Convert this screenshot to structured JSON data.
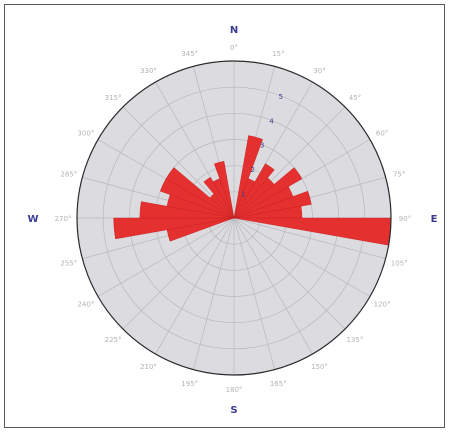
{
  "chart_data": {
    "type": "rose",
    "title": "",
    "cardinals": {
      "N": "N",
      "E": "E",
      "S": "S",
      "W": "W"
    },
    "angle_labels": [
      "0°",
      "15°",
      "30°",
      "45°",
      "60°",
      "75°",
      "90°",
      "105°",
      "120°",
      "135°",
      "150°",
      "165°",
      "180°",
      "195°",
      "210°",
      "225°",
      "240°",
      "255°",
      "270°",
      "285°",
      "300°",
      "315°",
      "330°",
      "345°"
    ],
    "radial_ticks": [
      "1",
      "2",
      "3",
      "4",
      "5"
    ],
    "radial_max": 6,
    "series": [
      {
        "color": "#e53030",
        "directions": [
          15,
          25,
          35,
          45,
          55,
          65,
          75,
          85,
          95,
          255,
          265,
          275,
          285,
          295,
          305,
          315,
          325,
          335,
          345
        ],
        "values": [
          3.2,
          1.6,
          2.4,
          2.0,
          3.0,
          2.4,
          3.0,
          2.6,
          6.0,
          2.6,
          4.6,
          3.6,
          2.6,
          3.0,
          3.0,
          1.2,
          1.8,
          1.6,
          2.2
        ]
      }
    ],
    "colors": {
      "plot_background": "#dcdce0",
      "grid": "#b7b7bd",
      "outline": "#2a2a2a",
      "bars": "#e53030"
    }
  }
}
